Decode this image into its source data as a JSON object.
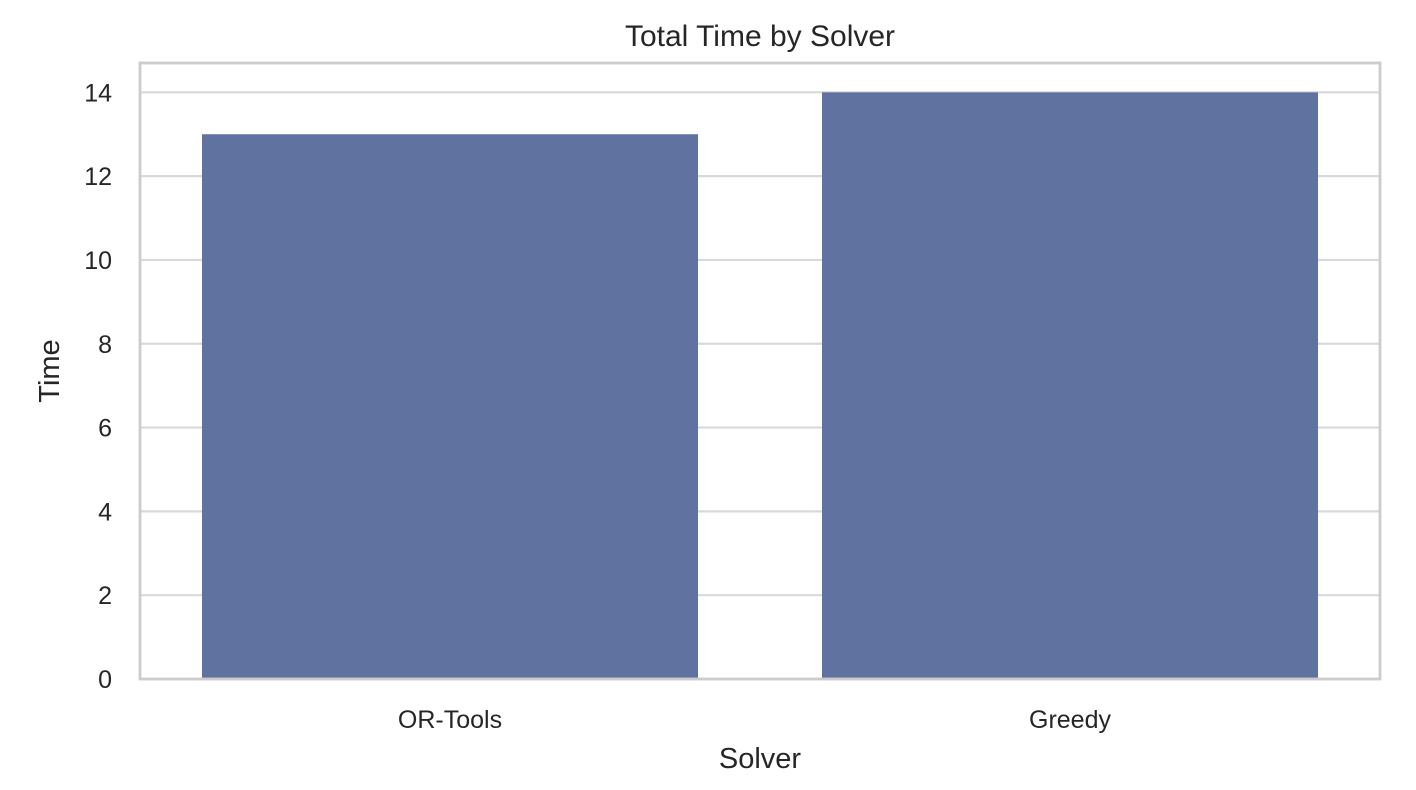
{
  "chart_data": {
    "type": "bar",
    "title": "Total Time by Solver",
    "xlabel": "Solver",
    "ylabel": "Time",
    "categories": [
      "OR-Tools",
      "Greedy"
    ],
    "values": [
      13,
      14
    ],
    "ylim": [
      0,
      14.7
    ],
    "yticks": [
      0,
      2,
      4,
      6,
      8,
      10,
      12,
      14
    ],
    "grid": "horizontal",
    "bar_color": "#5f72a0"
  }
}
